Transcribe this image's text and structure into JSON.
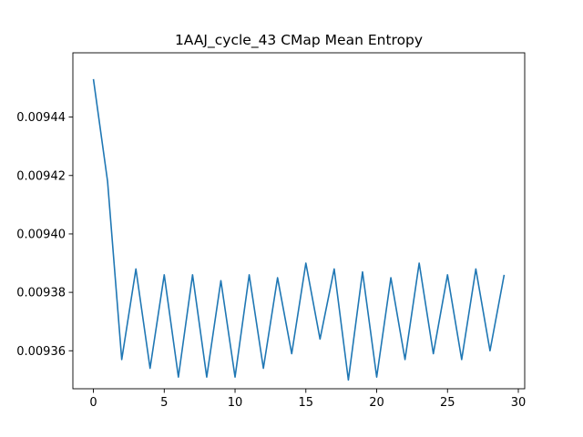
{
  "chart_data": {
    "type": "line",
    "title": "1AAJ_cycle_43 CMap Mean Entropy",
    "xlabel": "",
    "ylabel": "",
    "xlim": [
      -1.45,
      30.45
    ],
    "ylim": [
      0.009347,
      0.009462
    ],
    "grid": false,
    "line_color": "#1f77b4",
    "x_ticks": [
      0,
      5,
      10,
      15,
      20,
      25,
      30
    ],
    "x_tick_labels": [
      "0",
      "5",
      "10",
      "15",
      "20",
      "25",
      "30"
    ],
    "y_ticks": [
      0.00936,
      0.00938,
      0.0094,
      0.00942,
      0.00944
    ],
    "y_tick_labels": [
      "0.00936",
      "0.00938",
      "0.00940",
      "0.00942",
      "0.00944"
    ],
    "series": [
      {
        "x": [
          0,
          1,
          2,
          3,
          4,
          5,
          6,
          7,
          8,
          9,
          10,
          11,
          12,
          13,
          14,
          15,
          16,
          17,
          18,
          19,
          20,
          21,
          22,
          23,
          24,
          25,
          26,
          27,
          28,
          29
        ],
        "values": [
          0.009453,
          0.009418,
          0.009357,
          0.009388,
          0.009354,
          0.009386,
          0.009351,
          0.009386,
          0.009351,
          0.009384,
          0.009351,
          0.009386,
          0.009354,
          0.009385,
          0.009359,
          0.00939,
          0.009364,
          0.009388,
          0.00935,
          0.009387,
          0.009351,
          0.009385,
          0.009357,
          0.00939,
          0.009359,
          0.009386,
          0.009357,
          0.009388,
          0.00936,
          0.009386
        ]
      }
    ]
  }
}
